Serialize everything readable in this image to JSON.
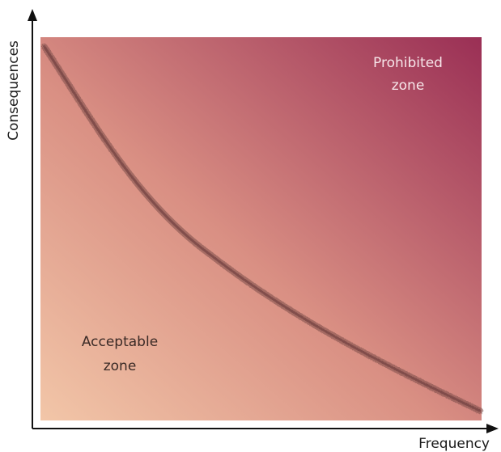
{
  "axes": {
    "x_label": "Frequency",
    "y_label": "Consequences"
  },
  "zones": {
    "prohibited": {
      "line1": "Prohibited",
      "line2": "zone"
    },
    "acceptable": {
      "line1": "Acceptable",
      "line2": "zone"
    }
  },
  "colors": {
    "prohibited_zone_tone": "#9a2f55",
    "acceptable_zone_tone": "#f2c6a8",
    "mid_tone": "#d98f83",
    "boundary_curve": "#7a4a48",
    "axis": "#111111",
    "prohibited_text": "#f7e6ea",
    "acceptable_text": "#3a2a26"
  }
}
